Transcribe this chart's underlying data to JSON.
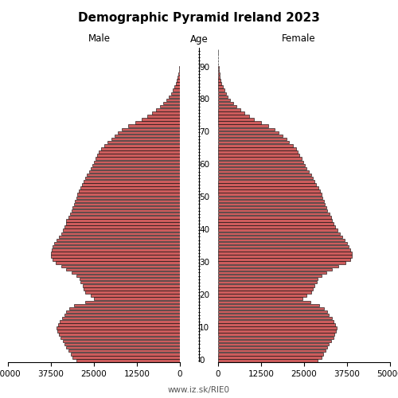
{
  "title": "Demographic Pyramid Ireland 2023",
  "subtitle_left": "Male",
  "subtitle_center": "Age",
  "subtitle_right": "Female",
  "watermark": "www.iz.sk/RIE0",
  "xlim": 50000,
  "bar_color": "#cd5c5c",
  "bar_edge_color": "#000000",
  "ages": [
    0,
    1,
    2,
    3,
    4,
    5,
    6,
    7,
    8,
    9,
    10,
    11,
    12,
    13,
    14,
    15,
    16,
    17,
    18,
    19,
    20,
    21,
    22,
    23,
    24,
    25,
    26,
    27,
    28,
    29,
    30,
    31,
    32,
    33,
    34,
    35,
    36,
    37,
    38,
    39,
    40,
    41,
    42,
    43,
    44,
    45,
    46,
    47,
    48,
    49,
    50,
    51,
    52,
    53,
    54,
    55,
    56,
    57,
    58,
    59,
    60,
    61,
    62,
    63,
    64,
    65,
    66,
    67,
    68,
    69,
    70,
    71,
    72,
    73,
    74,
    75,
    76,
    77,
    78,
    79,
    80,
    81,
    82,
    83,
    84,
    85,
    86,
    87,
    88,
    89,
    90,
    91,
    92,
    93,
    94,
    95
  ],
  "male": [
    30200,
    31200,
    31800,
    32400,
    33100,
    33500,
    34000,
    34800,
    35200,
    35600,
    35800,
    35400,
    34900,
    34200,
    33600,
    33100,
    32200,
    30800,
    27500,
    25000,
    26000,
    27500,
    28000,
    28200,
    29000,
    29200,
    30000,
    31500,
    33000,
    34500,
    36000,
    37000,
    37500,
    37500,
    37200,
    37000,
    36500,
    35800,
    35200,
    34500,
    34000,
    33500,
    33200,
    33000,
    32500,
    32000,
    31500,
    31200,
    30800,
    30500,
    30200,
    29800,
    29500,
    29000,
    28500,
    28000,
    27500,
    27000,
    26500,
    26000,
    25500,
    25000,
    24500,
    24000,
    23500,
    23000,
    22000,
    21000,
    20000,
    19000,
    18000,
    17000,
    15000,
    13000,
    11000,
    9500,
    8200,
    7000,
    5800,
    4800,
    3900,
    3200,
    2600,
    2100,
    1700,
    1200,
    900,
    650,
    450,
    300,
    180,
    100,
    60,
    30,
    15,
    7
  ],
  "female": [
    29000,
    30000,
    30600,
    31200,
    31800,
    32200,
    32800,
    33500,
    33800,
    34200,
    34500,
    34100,
    33500,
    33000,
    32200,
    31700,
    30900,
    29500,
    26800,
    24500,
    25700,
    27000,
    27500,
    28000,
    28800,
    29000,
    30000,
    31500,
    33000,
    35000,
    37000,
    38500,
    39000,
    39000,
    38500,
    38000,
    37500,
    36800,
    36200,
    35500,
    34800,
    34000,
    33500,
    33200,
    32800,
    32300,
    31800,
    31500,
    31000,
    30700,
    30300,
    30000,
    29600,
    29100,
    28500,
    28000,
    27500,
    27000,
    26500,
    25800,
    25200,
    24700,
    24200,
    23700,
    23200,
    22700,
    21800,
    20700,
    19800,
    18700,
    17500,
    16400,
    14500,
    12500,
    10500,
    9000,
    7700,
    6500,
    5300,
    4300,
    3500,
    2800,
    2200,
    1750,
    1400,
    1000,
    750,
    520,
    360,
    240,
    150,
    85,
    50,
    25,
    12,
    5
  ]
}
